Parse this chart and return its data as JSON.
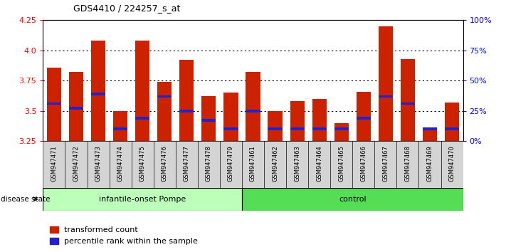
{
  "title": "GDS4410 / 224257_s_at",
  "samples": [
    "GSM947471",
    "GSM947472",
    "GSM947473",
    "GSM947474",
    "GSM947475",
    "GSM947476",
    "GSM947477",
    "GSM947478",
    "GSM947479",
    "GSM947461",
    "GSM947462",
    "GSM947463",
    "GSM947464",
    "GSM947465",
    "GSM947466",
    "GSM947467",
    "GSM947468",
    "GSM947469",
    "GSM947470"
  ],
  "bar_values": [
    3.86,
    3.82,
    4.08,
    3.5,
    4.08,
    3.74,
    3.92,
    3.62,
    3.65,
    3.82,
    3.5,
    3.58,
    3.6,
    3.4,
    3.66,
    4.2,
    3.93,
    3.35,
    3.57
  ],
  "blue_positions": [
    3.56,
    3.52,
    3.64,
    3.35,
    3.44,
    3.62,
    3.5,
    3.42,
    3.35,
    3.5,
    3.35,
    3.35,
    3.35,
    3.35,
    3.44,
    3.62,
    3.56,
    3.35,
    3.35
  ],
  "ylim_left": [
    3.25,
    4.25
  ],
  "ylim_right": [
    0,
    100
  ],
  "yticks_left": [
    3.25,
    3.5,
    3.75,
    4.0,
    4.25
  ],
  "yticks_right": [
    0,
    25,
    50,
    75,
    100
  ],
  "ytick_labels_right": [
    "0%",
    "25%",
    "50%",
    "75%",
    "100%"
  ],
  "bar_color": "#CC2200",
  "blue_color": "#2222CC",
  "group1_color": "#BBFFBB",
  "group2_color": "#55DD55",
  "group1_label": "infantile-onset Pompe",
  "group2_label": "control",
  "group1_count": 9,
  "group2_count": 10,
  "legend_red_label": "transformed count",
  "legend_blue_label": "percentile rank within the sample",
  "disease_state_label": "disease state"
}
